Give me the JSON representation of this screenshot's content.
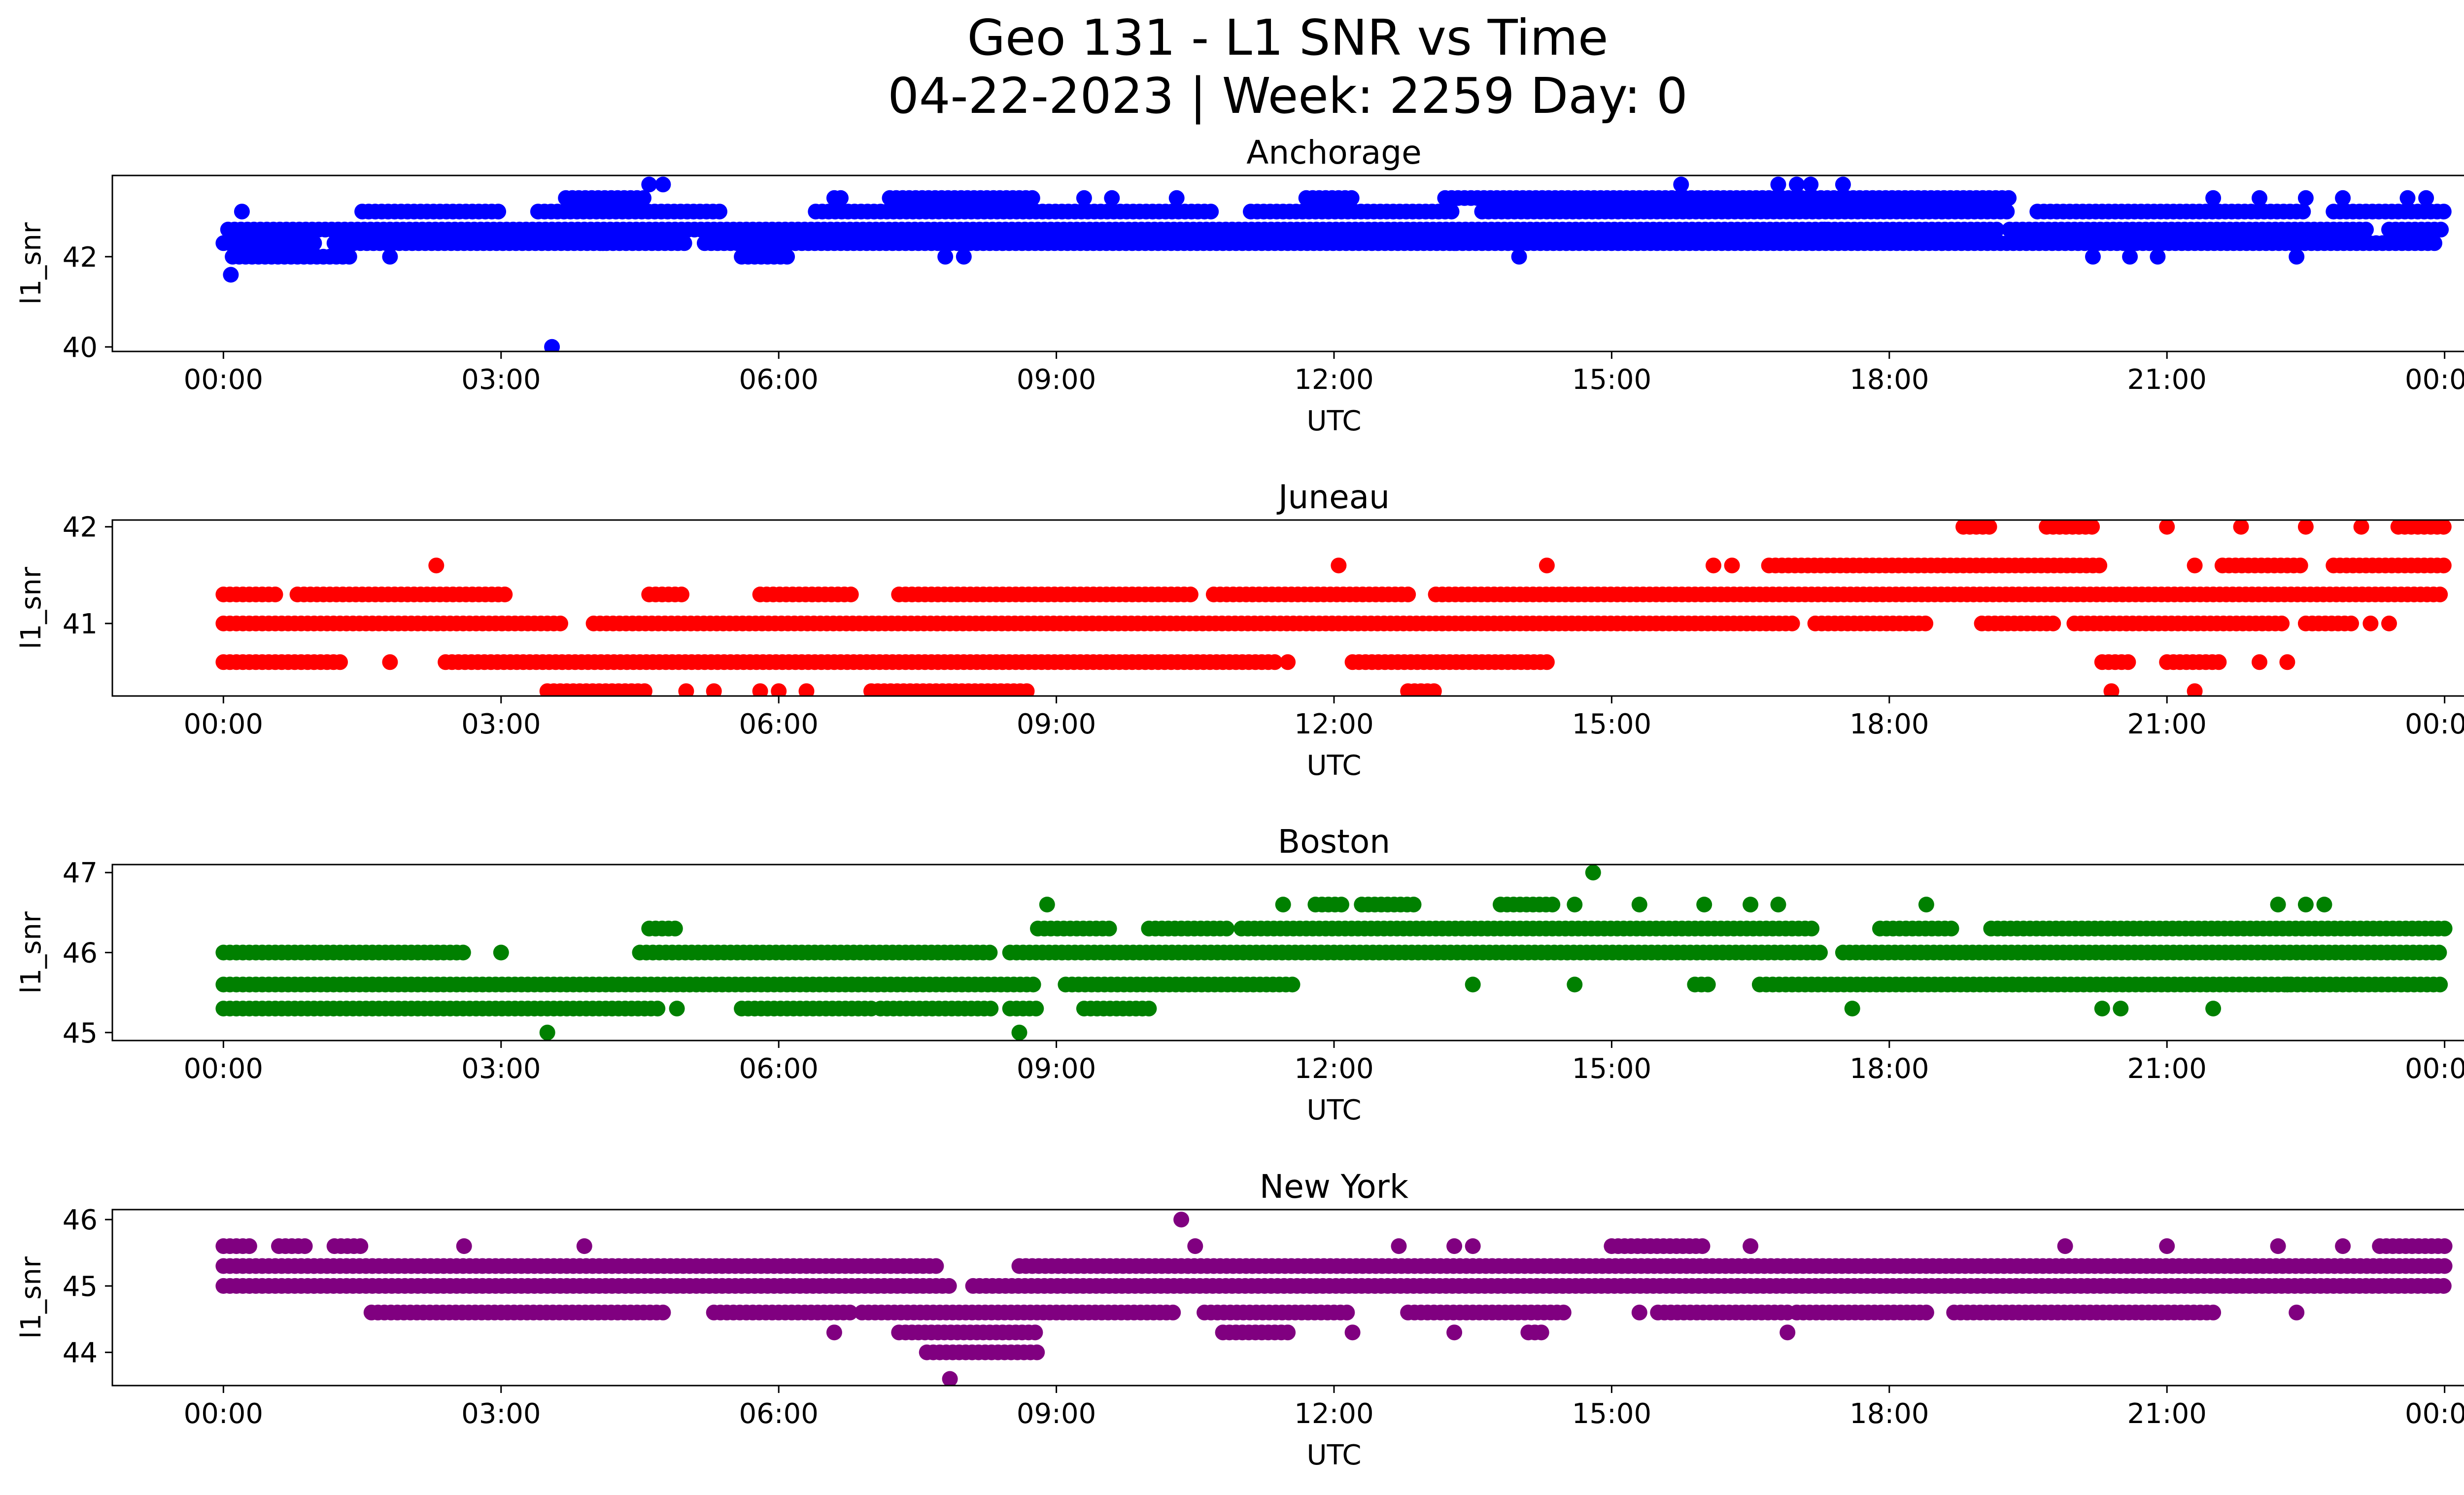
{
  "figure": {
    "title_line1": "Geo 131 - L1 SNR vs Time",
    "title_line2": "04-22-2023 | Week: 2259 Day: 0"
  },
  "chart_data": [
    {
      "type": "scatter",
      "title": "Anchorage",
      "xlabel": "UTC",
      "ylabel": "l1_snr",
      "color": "#0000ff",
      "x_ticks": [
        "00:00",
        "03:00",
        "06:00",
        "09:00",
        "12:00",
        "15:00",
        "18:00",
        "21:00",
        "00:00"
      ],
      "xlim_hours": [
        -1.2,
        25.2
      ],
      "ylim": [
        39.9,
        43.8
      ],
      "y_ticks": [
        40,
        42
      ],
      "bands": [
        {
          "y": 42.3,
          "segments": [
            [
              0.0,
              1.0
            ],
            [
              1.2,
              5.0
            ],
            [
              5.2,
              23.9
            ]
          ]
        },
        {
          "y": 42.6,
          "segments": [
            [
              0.05,
              19.2
            ],
            [
              19.3,
              23.2
            ],
            [
              23.4,
              24.0
            ]
          ]
        },
        {
          "y": 42.0,
          "segments": [
            [
              0.1,
              1.4
            ],
            [
              5.6,
              6.1
            ]
          ]
        },
        {
          "y": 43.0,
          "segments": [
            [
              1.5,
              3.0
            ],
            [
              3.4,
              5.4
            ],
            [
              6.4,
              10.7
            ],
            [
              11.1,
              13.3
            ],
            [
              13.6,
              19.3
            ],
            [
              19.6,
              22.5
            ],
            [
              22.8,
              24.0
            ]
          ]
        },
        {
          "y": 43.3,
          "segments": [
            [
              3.7,
              4.6
            ],
            [
              6.6,
              6.7
            ],
            [
              7.2,
              8.8
            ],
            [
              11.7,
              12.2
            ],
            [
              13.2,
              19.3
            ]
          ]
        }
      ],
      "points": [
        {
          "x": 0.08,
          "y": 41.6
        },
        {
          "x": 0.2,
          "y": 43.0
        },
        {
          "x": 1.8,
          "y": 42.0
        },
        {
          "x": 3.55,
          "y": 40.0
        },
        {
          "x": 4.1,
          "y": 42.3
        },
        {
          "x": 4.6,
          "y": 43.6
        },
        {
          "x": 4.75,
          "y": 43.6
        },
        {
          "x": 7.8,
          "y": 42.0
        },
        {
          "x": 8.0,
          "y": 42.0
        },
        {
          "x": 9.3,
          "y": 43.3
        },
        {
          "x": 9.6,
          "y": 43.3
        },
        {
          "x": 10.3,
          "y": 43.3
        },
        {
          "x": 13.3,
          "y": 42.3
        },
        {
          "x": 14.0,
          "y": 42.0
        },
        {
          "x": 15.75,
          "y": 43.6
        },
        {
          "x": 16.8,
          "y": 43.6
        },
        {
          "x": 17.0,
          "y": 43.6
        },
        {
          "x": 17.15,
          "y": 43.6
        },
        {
          "x": 17.5,
          "y": 43.6
        },
        {
          "x": 17.3,
          "y": 42.6
        },
        {
          "x": 20.2,
          "y": 42.0
        },
        {
          "x": 20.6,
          "y": 42.0
        },
        {
          "x": 20.9,
          "y": 42.0
        },
        {
          "x": 22.4,
          "y": 42.0
        },
        {
          "x": 21.5,
          "y": 43.3
        },
        {
          "x": 22.0,
          "y": 43.3
        },
        {
          "x": 22.5,
          "y": 43.3
        },
        {
          "x": 22.9,
          "y": 43.3
        },
        {
          "x": 23.6,
          "y": 43.3
        },
        {
          "x": 23.8,
          "y": 43.3
        }
      ]
    },
    {
      "type": "scatter",
      "title": "Juneau",
      "xlabel": "UTC",
      "ylabel": "l1_snr",
      "color": "#ff0000",
      "x_ticks": [
        "00:00",
        "03:00",
        "06:00",
        "09:00",
        "12:00",
        "15:00",
        "18:00",
        "21:00",
        "00:00"
      ],
      "xlim_hours": [
        -1.2,
        25.2
      ],
      "ylim": [
        40.25,
        42.07
      ],
      "y_ticks": [
        41,
        42
      ],
      "bands": [
        {
          "y": 41.0,
          "segments": [
            [
              0.0,
              3.7
            ],
            [
              4.0,
              17.0
            ],
            [
              17.2,
              18.4
            ],
            [
              19.0,
              19.8
            ],
            [
              20.0,
              22.3
            ],
            [
              22.5,
              23.0
            ]
          ]
        },
        {
          "y": 40.6,
          "segments": [
            [
              0.0,
              1.3
            ],
            [
              2.4,
              11.4
            ],
            [
              12.2,
              14.3
            ],
            [
              20.3,
              20.6
            ],
            [
              21.0,
              21.6
            ]
          ]
        },
        {
          "y": 41.3,
          "segments": [
            [
              0.0,
              0.6
            ],
            [
              0.8,
              3.1
            ],
            [
              4.6,
              5.0
            ],
            [
              5.8,
              6.8
            ],
            [
              7.3,
              10.5
            ],
            [
              10.7,
              12.8
            ],
            [
              13.1,
              24.0
            ]
          ]
        },
        {
          "y": 40.3,
          "segments": [
            [
              3.5,
              4.6
            ],
            [
              7.0,
              8.7
            ],
            [
              12.8,
              13.1
            ]
          ]
        },
        {
          "y": 41.6,
          "segments": [
            [
              16.7,
              20.3
            ],
            [
              21.6,
              22.5
            ],
            [
              22.8,
              24.0
            ]
          ]
        },
        {
          "y": 42.0,
          "segments": [
            [
              18.8,
              19.1
            ],
            [
              19.7,
              20.2
            ],
            [
              23.5,
              24.0
            ]
          ]
        }
      ],
      "points": [
        {
          "x": 2.3,
          "y": 41.6
        },
        {
          "x": 12.05,
          "y": 41.6
        },
        {
          "x": 14.3,
          "y": 41.6
        },
        {
          "x": 16.1,
          "y": 41.6
        },
        {
          "x": 16.3,
          "y": 41.6
        },
        {
          "x": 1.8,
          "y": 40.6
        },
        {
          "x": 5.0,
          "y": 40.3
        },
        {
          "x": 5.3,
          "y": 40.3
        },
        {
          "x": 5.8,
          "y": 40.3
        },
        {
          "x": 6.0,
          "y": 40.3
        },
        {
          "x": 6.3,
          "y": 40.3
        },
        {
          "x": 11.5,
          "y": 40.6
        },
        {
          "x": 21.0,
          "y": 42.0
        },
        {
          "x": 21.8,
          "y": 42.0
        },
        {
          "x": 22.5,
          "y": 42.0
        },
        {
          "x": 23.1,
          "y": 42.0
        },
        {
          "x": 21.3,
          "y": 41.6
        },
        {
          "x": 20.4,
          "y": 40.3
        },
        {
          "x": 21.3,
          "y": 40.3
        },
        {
          "x": 22.0,
          "y": 40.6
        },
        {
          "x": 22.3,
          "y": 40.6
        },
        {
          "x": 23.2,
          "y": 41.0
        },
        {
          "x": 23.4,
          "y": 41.0
        }
      ]
    },
    {
      "type": "scatter",
      "title": "Boston",
      "xlabel": "UTC",
      "ylabel": "l1_snr",
      "color": "#008000",
      "x_ticks": [
        "00:00",
        "03:00",
        "06:00",
        "09:00",
        "12:00",
        "15:00",
        "18:00",
        "21:00",
        "00:00"
      ],
      "xlim_hours": [
        -1.2,
        25.2
      ],
      "ylim": [
        44.9,
        47.1
      ],
      "y_ticks": [
        45,
        46,
        47
      ],
      "bands": [
        {
          "y": 45.6,
          "segments": [
            [
              0.0,
              8.8
            ],
            [
              9.1,
              11.6
            ],
            [
              15.9,
              16.1
            ],
            [
              16.6,
              24.0
            ]
          ]
        },
        {
          "y": 46.0,
          "segments": [
            [
              0.0,
              2.6
            ],
            [
              4.5,
              8.3
            ],
            [
              8.5,
              17.3
            ],
            [
              17.5,
              24.0
            ]
          ]
        },
        {
          "y": 45.3,
          "segments": [
            [
              0.0,
              4.7
            ],
            [
              5.6,
              7.0
            ],
            [
              7.1,
              8.3
            ],
            [
              8.5,
              8.8
            ],
            [
              9.3,
              10.0
            ]
          ]
        },
        {
          "y": 46.3,
          "segments": [
            [
              4.6,
              4.9
            ],
            [
              8.8,
              9.6
            ],
            [
              10.0,
              10.9
            ],
            [
              11.0,
              17.2
            ],
            [
              17.9,
              18.7
            ],
            [
              19.1,
              24.0
            ]
          ]
        },
        {
          "y": 46.6,
          "segments": [
            [
              11.8,
              12.1
            ],
            [
              12.3,
              12.9
            ],
            [
              13.8,
              14.4
            ]
          ]
        }
      ],
      "points": [
        {
          "x": 3.5,
          "y": 45.0
        },
        {
          "x": 8.6,
          "y": 45.0
        },
        {
          "x": 8.9,
          "y": 46.6
        },
        {
          "x": 11.45,
          "y": 46.6
        },
        {
          "x": 14.8,
          "y": 47.0
        },
        {
          "x": 14.6,
          "y": 46.6
        },
        {
          "x": 15.3,
          "y": 46.6
        },
        {
          "x": 16.0,
          "y": 46.6
        },
        {
          "x": 16.5,
          "y": 46.6
        },
        {
          "x": 16.8,
          "y": 46.6
        },
        {
          "x": 18.4,
          "y": 46.6
        },
        {
          "x": 22.2,
          "y": 46.6
        },
        {
          "x": 22.5,
          "y": 46.6
        },
        {
          "x": 22.7,
          "y": 46.6
        },
        {
          "x": 14.6,
          "y": 45.6
        },
        {
          "x": 13.5,
          "y": 45.6
        },
        {
          "x": 17.6,
          "y": 45.3
        },
        {
          "x": 20.3,
          "y": 45.3
        },
        {
          "x": 20.5,
          "y": 45.3
        },
        {
          "x": 21.5,
          "y": 45.3
        },
        {
          "x": 22.3,
          "y": 45.6
        },
        {
          "x": 4.9,
          "y": 45.3
        },
        {
          "x": 3.0,
          "y": 46.0
        }
      ]
    },
    {
      "type": "scatter",
      "title": "New York",
      "xlabel": "UTC",
      "ylabel": "l1_snr",
      "color": "#800080",
      "x_ticks": [
        "00:00",
        "03:00",
        "06:00",
        "09:00",
        "12:00",
        "15:00",
        "18:00",
        "21:00",
        "00:00"
      ],
      "xlim_hours": [
        -1.2,
        25.2
      ],
      "ylim": [
        43.5,
        46.15
      ],
      "y_ticks": [
        44,
        45,
        46
      ],
      "bands": [
        {
          "y": 45.3,
          "segments": [
            [
              0.0,
              7.7
            ],
            [
              8.6,
              24.0
            ]
          ]
        },
        {
          "y": 45.0,
          "segments": [
            [
              0.0,
              7.9
            ],
            [
              8.1,
              24.0
            ]
          ]
        },
        {
          "y": 44.6,
          "segments": [
            [
              1.6,
              4.8
            ],
            [
              5.3,
              6.8
            ],
            [
              6.9,
              10.3
            ],
            [
              10.6,
              12.2
            ],
            [
              12.8,
              14.5
            ],
            [
              15.5,
              16.9
            ],
            [
              17.0,
              18.4
            ],
            [
              18.7,
              21.5
            ]
          ]
        },
        {
          "y": 44.3,
          "segments": [
            [
              7.3,
              8.8
            ],
            [
              10.8,
              11.5
            ],
            [
              14.1,
              14.3
            ]
          ]
        },
        {
          "y": 44.0,
          "segments": [
            [
              7.6,
              8.8
            ]
          ]
        },
        {
          "y": 45.6,
          "segments": [
            [
              0.0,
              0.3
            ],
            [
              0.6,
              0.9
            ],
            [
              1.2,
              1.5
            ],
            [
              15.0,
              16.0
            ],
            [
              23.3,
              24.0
            ]
          ]
        }
      ],
      "points": [
        {
          "x": 7.85,
          "y": 43.6
        },
        {
          "x": 10.35,
          "y": 46.0
        },
        {
          "x": 2.6,
          "y": 45.6
        },
        {
          "x": 3.9,
          "y": 45.6
        },
        {
          "x": 6.6,
          "y": 44.3
        },
        {
          "x": 10.5,
          "y": 45.6
        },
        {
          "x": 12.7,
          "y": 45.6
        },
        {
          "x": 13.3,
          "y": 45.6
        },
        {
          "x": 13.5,
          "y": 45.6
        },
        {
          "x": 16.5,
          "y": 45.6
        },
        {
          "x": 19.9,
          "y": 45.6
        },
        {
          "x": 21.0,
          "y": 45.6
        },
        {
          "x": 22.2,
          "y": 45.6
        },
        {
          "x": 22.9,
          "y": 45.6
        },
        {
          "x": 16.9,
          "y": 44.3
        },
        {
          "x": 12.2,
          "y": 44.3
        },
        {
          "x": 13.3,
          "y": 44.3
        },
        {
          "x": 22.4,
          "y": 44.6
        },
        {
          "x": 15.3,
          "y": 44.6
        }
      ]
    }
  ]
}
